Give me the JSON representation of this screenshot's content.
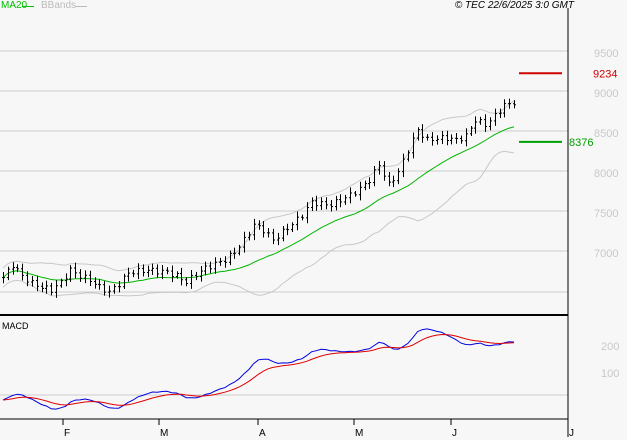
{
  "header": {
    "ma_label": "MA20",
    "bb_label": "BBands",
    "copyright": "© TEC 22/6/2025 3:0 GMT"
  },
  "colors": {
    "ma": "#00b400",
    "bands": "#c8c8c8",
    "macd": "#0000e0",
    "signal": "#e00000",
    "resistance": "#d00000",
    "support": "#00a000"
  },
  "chart_data": {
    "type": "ohlc",
    "price_axis": {
      "min": 6500,
      "max": 9700,
      "ticks": [
        7000,
        7500,
        8000,
        8500,
        9000,
        9500
      ],
      "tick_labels": [
        "7000",
        "7500",
        "8000",
        "8500",
        "9000",
        "9500"
      ]
    },
    "x_labels": [
      "F",
      "M",
      "A",
      "M",
      "J",
      "J"
    ],
    "weekly_closes": [
      6680,
      6840,
      6700,
      6610,
      6560,
      6525,
      6620,
      6775,
      6700,
      6650,
      6560,
      6500,
      6600,
      6740,
      6760,
      6775,
      6760,
      6750,
      6700,
      6625,
      6720,
      6800,
      6850,
      6900,
      7000,
      7150,
      7340,
      7275,
      7150,
      7250,
      7350,
      7460,
      7625,
      7600,
      7590,
      7650,
      7710,
      7790,
      7900,
      8090,
      7840,
      8000,
      8275,
      8525,
      8400,
      8420,
      8425,
      8400,
      8450,
      8650,
      8590,
      8700,
      8840,
      8840
    ],
    "levels": [
      {
        "label": "9234",
        "value": 9234,
        "kind": "resistance"
      },
      {
        "label": "8376",
        "value": 8376,
        "kind": "support"
      }
    ],
    "macd": {
      "title": "MACD",
      "ticks": [
        100,
        200
      ],
      "tick_labels": [
        "100",
        "200"
      ]
    }
  }
}
